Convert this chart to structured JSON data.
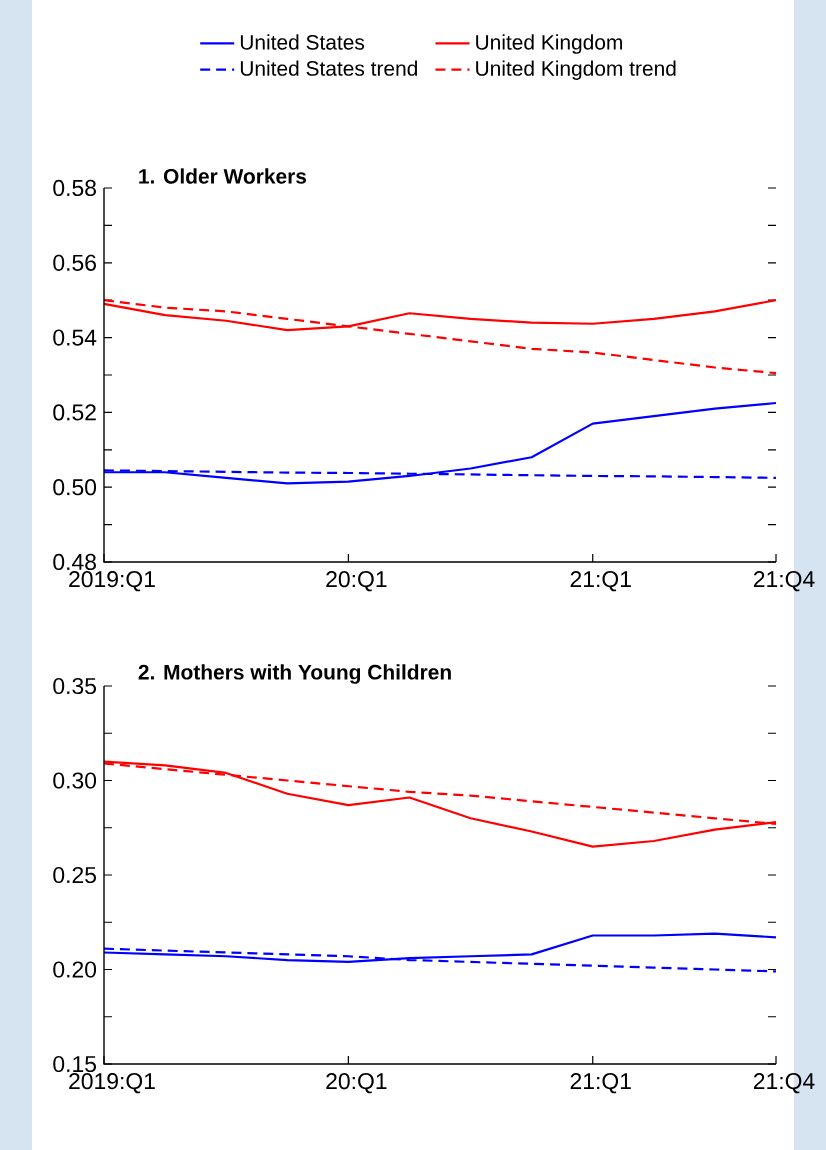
{
  "chart_data": [
    {
      "type": "line",
      "title": "1. Older Workers",
      "legend": "top",
      "categories": [
        "2019:Q1",
        null,
        null,
        null,
        "20:Q1",
        null,
        null,
        null,
        "21:Q1",
        null,
        null,
        "21:Q4"
      ],
      "ylim": [
        0.48,
        0.58
      ],
      "yticks": [
        {
          "value": 0.48,
          "label": "0.48"
        },
        {
          "value": 0.49,
          "label": null
        },
        {
          "value": 0.5,
          "label": "0.50"
        },
        {
          "value": 0.51,
          "label": null
        },
        {
          "value": 0.52,
          "label": "0.52"
        },
        {
          "value": 0.53,
          "label": null
        },
        {
          "value": 0.54,
          "label": "0.54"
        },
        {
          "value": 0.55,
          "label": null
        },
        {
          "value": 0.56,
          "label": "0.56"
        },
        {
          "value": 0.57,
          "label": null
        },
        {
          "value": 0.58,
          "label": "0.58"
        }
      ],
      "series": [
        {
          "name": "United States",
          "color": "#0000ff",
          "line_style": "solid",
          "values": [
            0.504,
            0.504,
            0.5025,
            0.501,
            0.5015,
            0.503,
            0.505,
            0.508,
            0.517,
            0.519,
            0.521,
            0.5225
          ]
        },
        {
          "name": "United Kingdom",
          "color": "#ff0000",
          "line_style": "solid",
          "values": [
            0.549,
            0.546,
            0.5445,
            0.542,
            0.543,
            0.5465,
            0.545,
            0.544,
            0.5437,
            0.545,
            0.547,
            0.55
          ]
        },
        {
          "name": "United States trend",
          "color": "#0000ff",
          "line_style": "dashed",
          "values": [
            0.5045,
            0.5043,
            0.5041,
            0.5039,
            0.5038,
            0.5036,
            0.5034,
            0.5032,
            0.503,
            0.5029,
            0.5027,
            0.5025
          ]
        },
        {
          "name": "United Kingdom trend",
          "color": "#ff0000",
          "line_style": "dashed",
          "values": [
            0.55,
            0.548,
            0.547,
            0.545,
            0.543,
            0.541,
            0.539,
            0.537,
            0.536,
            0.534,
            0.532,
            0.5305
          ]
        }
      ]
    },
    {
      "type": "line",
      "title": "2. Mothers with Young Children",
      "categories": [
        "2019:Q1",
        null,
        null,
        null,
        "20:Q1",
        null,
        null,
        null,
        "21:Q1",
        null,
        null,
        "21:Q4"
      ],
      "ylim": [
        0.15,
        0.35
      ],
      "yticks": [
        {
          "value": 0.15,
          "label": "0.15"
        },
        {
          "value": 0.175,
          "label": null
        },
        {
          "value": 0.2,
          "label": "0.20"
        },
        {
          "value": 0.225,
          "label": null
        },
        {
          "value": 0.25,
          "label": "0.25"
        },
        {
          "value": 0.275,
          "label": null
        },
        {
          "value": 0.3,
          "label": "0.30"
        },
        {
          "value": 0.325,
          "label": null
        },
        {
          "value": 0.35,
          "label": "0.35"
        }
      ],
      "series": [
        {
          "color": "#0000ff",
          "line_style": "solid",
          "values": [
            0.209,
            0.208,
            0.207,
            0.205,
            0.204,
            0.206,
            0.207,
            0.208,
            0.218,
            0.218,
            0.219,
            0.217
          ]
        },
        {
          "color": "#ff0000",
          "line_style": "solid",
          "values": [
            0.31,
            0.308,
            0.304,
            0.293,
            0.287,
            0.291,
            0.28,
            0.273,
            0.265,
            0.268,
            0.274,
            0.278
          ]
        },
        {
          "color": "#0000ff",
          "line_style": "dashed",
          "values": [
            0.211,
            0.21,
            0.209,
            0.208,
            0.207,
            0.205,
            0.204,
            0.203,
            0.202,
            0.201,
            0.2,
            0.199
          ]
        },
        {
          "color": "#ff0000",
          "line_style": "dashed",
          "values": [
            0.309,
            0.306,
            0.303,
            0.3,
            0.297,
            0.294,
            0.292,
            0.289,
            0.286,
            0.283,
            0.28,
            0.277
          ]
        }
      ]
    }
  ]
}
